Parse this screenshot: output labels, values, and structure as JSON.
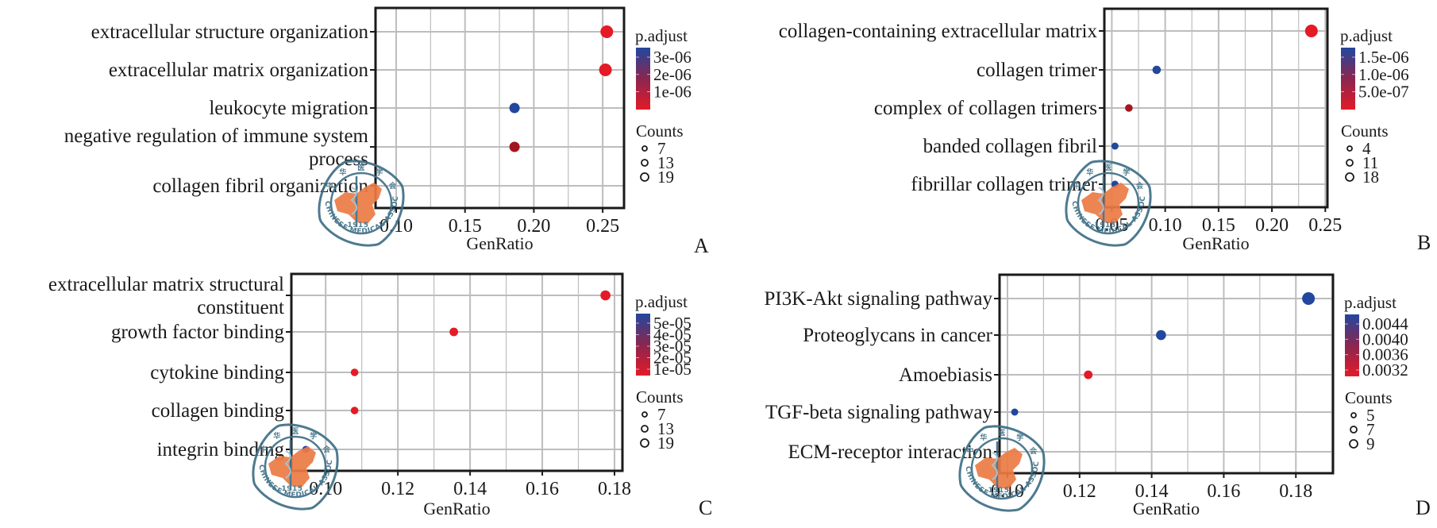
{
  "figure": {
    "description": "GO/KEGG enrichment dot plots, four panels",
    "logo_text": "CHINESE MEDICAL ASSOCIATION",
    "logo_year": "1915",
    "logo_chars": [
      "中",
      "华",
      "医",
      "学",
      "会"
    ]
  },
  "colors": {
    "low_padj": "#e41a27",
    "high_padj": "#22479e",
    "mid_padj": "#a3161f",
    "grid": "#bdbdbd",
    "frame": "#1a1a1a",
    "logo_outline": "#3e6f86",
    "logo_map": "#ec7b45"
  },
  "chart_data": [
    {
      "panel": "A",
      "type": "scatter",
      "xlabel": "GenRatio",
      "xlim": [
        0.085,
        0.2655
      ],
      "xticks": [
        0.1,
        0.15,
        0.2,
        0.25
      ],
      "xtick_labels": [
        "0.10",
        "0.15",
        "0.20",
        "0.25"
      ],
      "categories": [
        "extracellular structure organization",
        "extracellular matrix organization",
        "leukocyte migration",
        "negative regulation of immune system process",
        "collagen fibril organization"
      ],
      "category_lines": [
        [
          "extracellular structure organization"
        ],
        [
          "extracellular matrix organization"
        ],
        [
          "leukocyte migration"
        ],
        [
          "negative regulation of immune system",
          "process"
        ],
        [
          "collagen fibril organization"
        ]
      ],
      "points": [
        {
          "term": "extracellular structure organization",
          "gene_ratio": 0.253,
          "count": 19,
          "color": "#e41a27"
        },
        {
          "term": "extracellular matrix organization",
          "gene_ratio": 0.252,
          "count": 19,
          "color": "#e41a27"
        },
        {
          "term": "leukocyte migration",
          "gene_ratio": 0.186,
          "count": 14,
          "color": "#22479e"
        },
        {
          "term": "negative regulation of immune system process",
          "gene_ratio": 0.186,
          "count": 14,
          "color": "#a3161f"
        }
      ],
      "color_legend": {
        "title": "p.adjust",
        "labels": [
          "3e-06",
          "2e-06",
          "1e-06"
        ]
      },
      "size_legend": {
        "title": "Counts",
        "labels": [
          "7",
          "13",
          "19"
        ]
      },
      "panel_label": "A"
    },
    {
      "panel": "B",
      "type": "scatter",
      "xlabel": "GenRatio",
      "xlim": [
        0.043,
        0.252
      ],
      "xticks": [
        0.05,
        0.1,
        0.15,
        0.2,
        0.25
      ],
      "xtick_labels": [
        "0.05",
        "0.10",
        "0.15",
        "0.20",
        "0.25"
      ],
      "categories": [
        "collagen-containing extracellular matrix",
        "collagen trimer",
        "complex of collagen trimers",
        "banded collagen fibril",
        "fibrillar collagen trimer"
      ],
      "category_lines": [
        [
          "collagen-containing extracellular matrix"
        ],
        [
          "collagen trimer"
        ],
        [
          "complex of collagen trimers"
        ],
        [
          "banded collagen fibril"
        ],
        [
          "fibrillar collagen trimer"
        ]
      ],
      "points": [
        {
          "term": "collagen-containing extracellular matrix",
          "gene_ratio": 0.237,
          "count": 18,
          "color": "#e41a27"
        },
        {
          "term": "collagen trimer",
          "gene_ratio": 0.092,
          "count": 7,
          "color": "#22479e"
        },
        {
          "term": "complex of collagen trimers",
          "gene_ratio": 0.066,
          "count": 5,
          "color": "#a3161f"
        },
        {
          "term": "banded collagen fibril",
          "gene_ratio": 0.053,
          "count": 4,
          "color": "#22479e"
        },
        {
          "term": "fibrillar collagen trimer",
          "gene_ratio": 0.053,
          "count": 4,
          "color": "#22479e"
        }
      ],
      "color_legend": {
        "title": "p.adjust",
        "labels": [
          "1.5e-06",
          "1.0e-06",
          "5.0e-07"
        ]
      },
      "size_legend": {
        "title": "Counts",
        "labels": [
          "4",
          "11",
          "18"
        ]
      },
      "panel_label": "B"
    },
    {
      "panel": "C",
      "type": "scatter",
      "xlabel": "GenRatio",
      "xlim": [
        0.0905,
        0.1822
      ],
      "xticks": [
        0.1,
        0.12,
        0.14,
        0.16,
        0.18
      ],
      "xtick_labels": [
        "0.10",
        "0.12",
        "0.14",
        "0.16",
        "0.18"
      ],
      "categories": [
        "extracellular matrix structural constituent",
        "growth factor binding",
        "cytokine binding",
        "collagen binding",
        "integrin binding"
      ],
      "category_lines": [
        [
          "extracellular matrix structural",
          "constituent"
        ],
        [
          "growth factor binding"
        ],
        [
          "cytokine binding"
        ],
        [
          "collagen binding"
        ],
        [
          "integrin binding"
        ]
      ],
      "points": [
        {
          "term": "extracellular matrix structural constituent",
          "gene_ratio": 0.1775,
          "count": 13,
          "color": "#e41a27"
        },
        {
          "term": "growth factor binding",
          "gene_ratio": 0.1355,
          "count": 10,
          "color": "#e41a27"
        },
        {
          "term": "cytokine binding",
          "gene_ratio": 0.108,
          "count": 8,
          "color": "#e41a27"
        },
        {
          "term": "collagen binding",
          "gene_ratio": 0.108,
          "count": 8,
          "color": "#e41a27"
        },
        {
          "term": "integrin binding",
          "gene_ratio": 0.0945,
          "count": 7,
          "color": "#22479e"
        }
      ],
      "color_legend": {
        "title": "p.adjust",
        "labels": [
          "5e-05",
          "4e-05",
          "3e-05",
          "2e-05",
          "1e-05"
        ]
      },
      "size_legend": {
        "title": "Counts",
        "labels": [
          "7",
          "13",
          "19"
        ]
      },
      "panel_label": "C"
    },
    {
      "panel": "D",
      "type": "scatter",
      "xlabel": "GenRatio",
      "xlim": [
        0.0978,
        0.1903
      ],
      "xticks": [
        0.1,
        0.12,
        0.14,
        0.16,
        0.18
      ],
      "xtick_labels": [
        "0.10",
        "0.12",
        "0.14",
        "0.16",
        "0.18"
      ],
      "categories": [
        "PI3K-Akt signaling pathway",
        "Proteoglycans in cancer",
        "Amoebiasis",
        "TGF-beta signaling pathway",
        "ECM-receptor interaction"
      ],
      "category_lines": [
        [
          "PI3K-Akt signaling pathway"
        ],
        [
          "Proteoglycans in cancer"
        ],
        [
          "Amoebiasis"
        ],
        [
          "TGF-beta signaling pathway"
        ],
        [
          "ECM-receptor interaction"
        ]
      ],
      "points": [
        {
          "term": "PI3K-Akt signaling pathway",
          "gene_ratio": 0.1835,
          "count": 9,
          "color": "#22479e"
        },
        {
          "term": "Proteoglycans in cancer",
          "gene_ratio": 0.1426,
          "count": 7,
          "color": "#22479e"
        },
        {
          "term": "Amoebiasis",
          "gene_ratio": 0.1224,
          "count": 6,
          "color": "#e41a27"
        },
        {
          "term": "TGF-beta signaling pathway",
          "gene_ratio": 0.102,
          "count": 5,
          "color": "#22479e"
        }
      ],
      "color_legend": {
        "title": "p.adjust",
        "labels": [
          "0.0044",
          "0.0040",
          "0.0036",
          "0.0032"
        ]
      },
      "size_legend": {
        "title": "Counts",
        "labels": [
          "5",
          "7",
          "9"
        ]
      },
      "panel_label": "D"
    }
  ]
}
